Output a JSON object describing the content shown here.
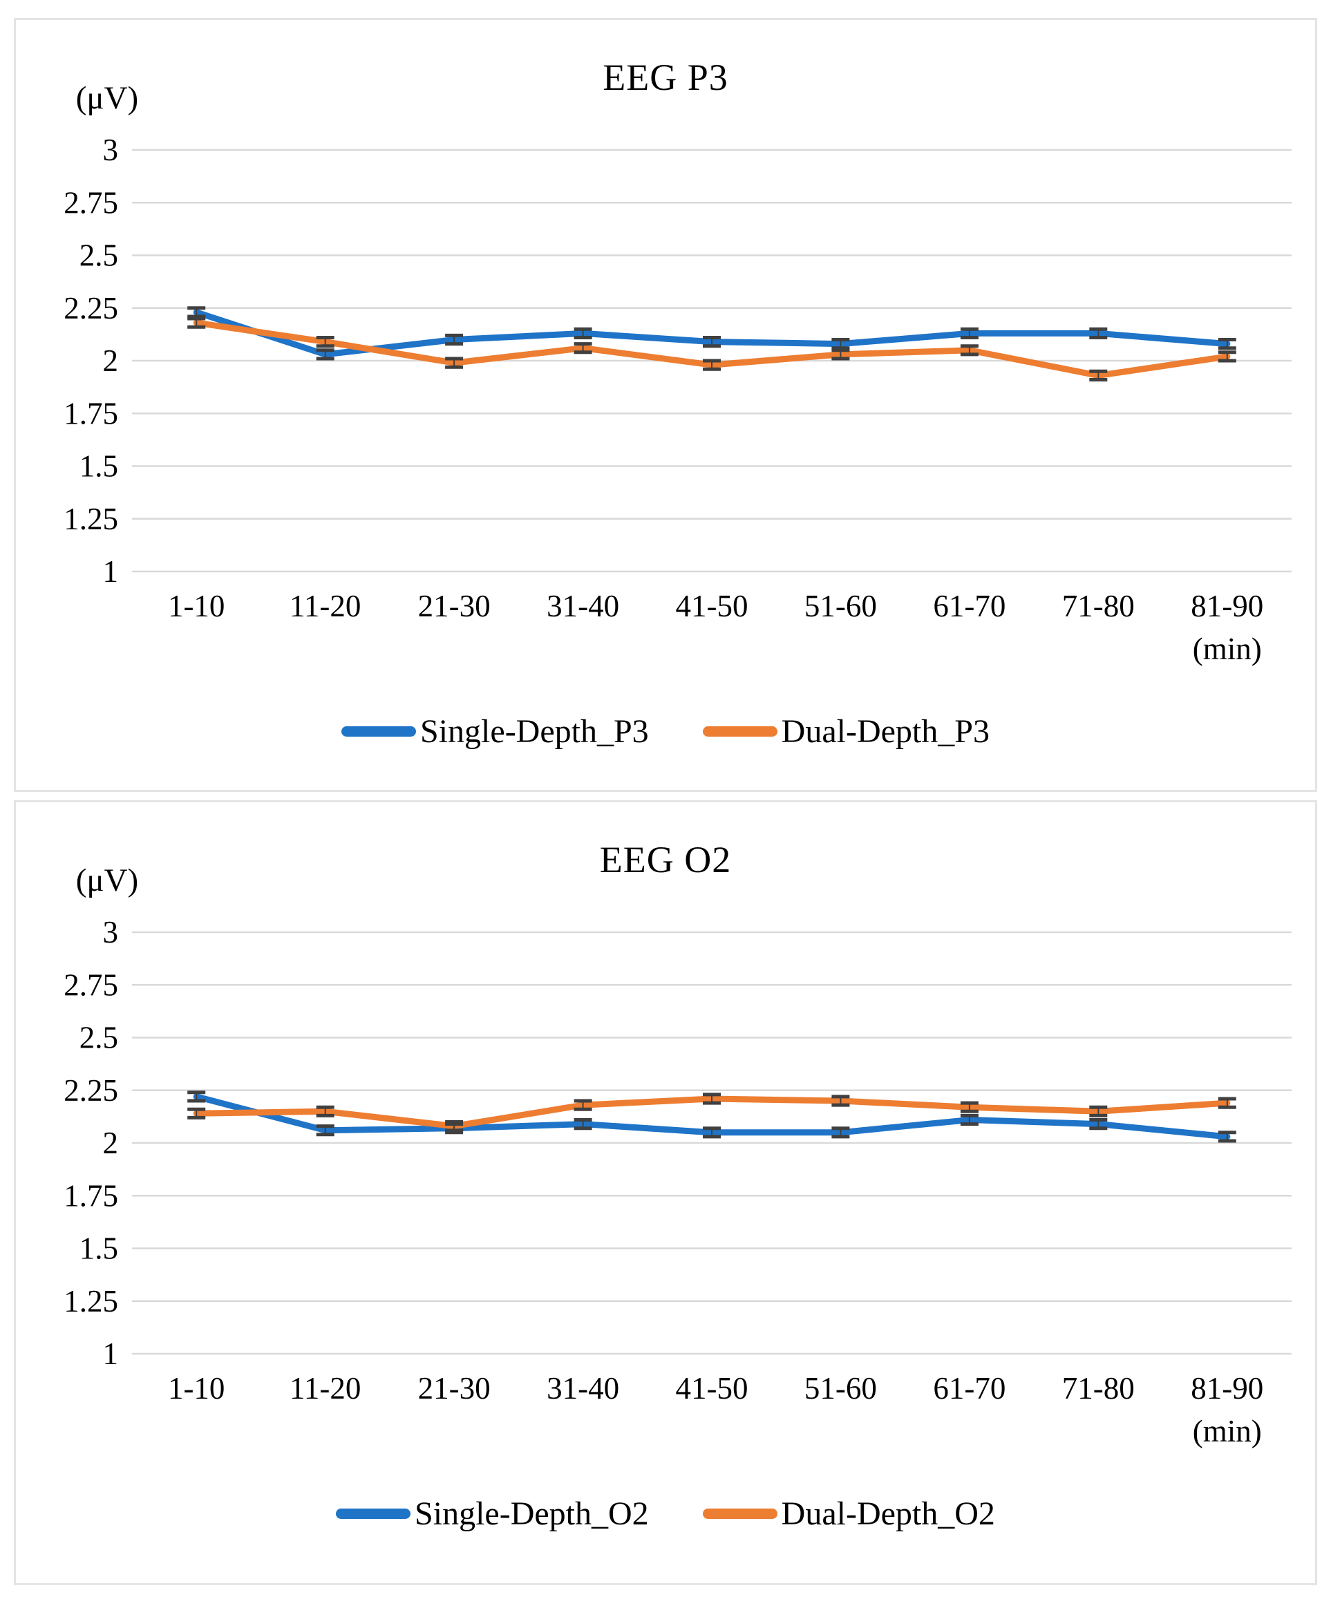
{
  "colors": {
    "blue": "#1F74C8",
    "orange": "#ED7D31",
    "gridline": "#D9D9D9",
    "error_bar": "#404040",
    "panel_border": "#E4E4E4",
    "text": "#000000"
  },
  "chart_data": [
    {
      "type": "line",
      "title": "EEG P3",
      "y_unit_label": "(μV)",
      "x_unit_label": "(min)",
      "ylim": [
        1,
        3
      ],
      "grid": true,
      "legend_position": "bottom",
      "y_ticks": [
        {
          "value": 3,
          "label": "3"
        },
        {
          "value": 2.75,
          "label": "2.75"
        },
        {
          "value": 2.5,
          "label": "2.5"
        },
        {
          "value": 2.25,
          "label": "2.25"
        },
        {
          "value": 2,
          "label": "2"
        },
        {
          "value": 1.75,
          "label": "1.75"
        },
        {
          "value": 1.5,
          "label": "1.5"
        },
        {
          "value": 1.25,
          "label": "1.25"
        },
        {
          "value": 1,
          "label": "1"
        }
      ],
      "categories": [
        "1-10",
        "11-20",
        "21-30",
        "31-40",
        "41-50",
        "51-60",
        "61-70",
        "71-80",
        "81-90"
      ],
      "series": [
        {
          "name": "Single-Depth_P3",
          "color_key": "blue",
          "values": [
            2.23,
            2.03,
            2.1,
            2.13,
            2.09,
            2.08,
            2.13,
            2.13,
            2.08
          ],
          "error": 0.02
        },
        {
          "name": "Dual-Depth_P3",
          "color_key": "orange",
          "values": [
            2.18,
            2.09,
            1.99,
            2.06,
            1.98,
            2.03,
            2.05,
            1.93,
            2.02
          ],
          "error": 0.02
        }
      ]
    },
    {
      "type": "line",
      "title": "EEG O2",
      "y_unit_label": "(μV)",
      "x_unit_label": "(min)",
      "ylim": [
        1,
        3
      ],
      "grid": true,
      "legend_position": "bottom",
      "y_ticks": [
        {
          "value": 3,
          "label": "3"
        },
        {
          "value": 2.75,
          "label": "2.75"
        },
        {
          "value": 2.5,
          "label": "2.5"
        },
        {
          "value": 2.25,
          "label": "2.25"
        },
        {
          "value": 2,
          "label": "2"
        },
        {
          "value": 1.75,
          "label": "1.75"
        },
        {
          "value": 1.5,
          "label": "1.5"
        },
        {
          "value": 1.25,
          "label": "1.25"
        },
        {
          "value": 1,
          "label": "1"
        }
      ],
      "categories": [
        "1-10",
        "11-20",
        "21-30",
        "31-40",
        "41-50",
        "51-60",
        "61-70",
        "71-80",
        "81-90"
      ],
      "series": [
        {
          "name": "Single-Depth_O2",
          "color_key": "blue",
          "values": [
            2.22,
            2.06,
            2.07,
            2.09,
            2.05,
            2.05,
            2.11,
            2.09,
            2.03
          ],
          "error": 0.02
        },
        {
          "name": "Dual-Depth_O2",
          "color_key": "orange",
          "values": [
            2.14,
            2.15,
            2.08,
            2.18,
            2.21,
            2.2,
            2.17,
            2.15,
            2.19
          ],
          "error": 0.02
        }
      ]
    }
  ]
}
